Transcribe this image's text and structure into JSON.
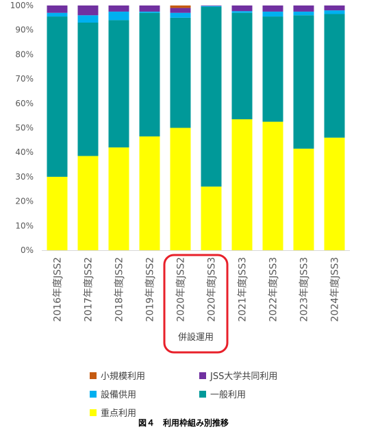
{
  "chart_data": {
    "type": "bar",
    "stacked": true,
    "percent": true,
    "categories": [
      "2016年度JSS2",
      "2017年度JSS2",
      "2018年度JSS2",
      "2019年度JSS2",
      "2020年度JSS2",
      "2020年度JSS3",
      "2021年度JSS3",
      "2022年度JSS3",
      "2023年度JSS3",
      "2024年度JSS3"
    ],
    "yticks": [
      "0%",
      "10%",
      "20%",
      "30%",
      "40%",
      "50%",
      "60%",
      "70%",
      "80%",
      "90%",
      "100%"
    ],
    "ylim": [
      0,
      100
    ],
    "grid": false,
    "legend_position": "bottom",
    "series": [
      {
        "name": "重点利用",
        "color": "#ffff00",
        "values": [
          30,
          38.5,
          42,
          46.5,
          50,
          26,
          53.5,
          52.5,
          41.5,
          46
        ]
      },
      {
        "name": "一般利用",
        "color": "#009999",
        "values": [
          65.5,
          54.5,
          52,
          50.5,
          45,
          73.5,
          43.5,
          43,
          54.5,
          50.5
        ]
      },
      {
        "name": "設備供用",
        "color": "#00b0f0",
        "values": [
          1.5,
          3,
          3.5,
          0.5,
          2,
          0.3,
          0.7,
          2,
          1.5,
          1.5
        ]
      },
      {
        "name": "JSS大学共同利用",
        "color": "#7030a0",
        "values": [
          3,
          4,
          2.5,
          2.5,
          2,
          0.2,
          2.3,
          2.5,
          2.5,
          2
        ]
      },
      {
        "name": "小規模利用",
        "color": "#c55a11",
        "values": [
          0,
          0,
          0,
          0,
          1,
          0,
          0,
          0,
          0,
          0
        ]
      }
    ],
    "highlight": {
      "label": "併設運用",
      "color": "#e8202a",
      "categories": [
        "2020年度JSS2",
        "2020年度JSS3"
      ]
    }
  },
  "legend": {
    "items": [
      {
        "label": "小規模利用",
        "color": "#c55a11"
      },
      {
        "label": "JSS大学共同利用",
        "color": "#7030a0"
      },
      {
        "label": "設備供用",
        "color": "#00b0f0"
      },
      {
        "label": "一般利用",
        "color": "#009999"
      },
      {
        "label": "重点利用",
        "color": "#ffff00"
      }
    ]
  },
  "caption": "図４　利用枠組み別推移"
}
